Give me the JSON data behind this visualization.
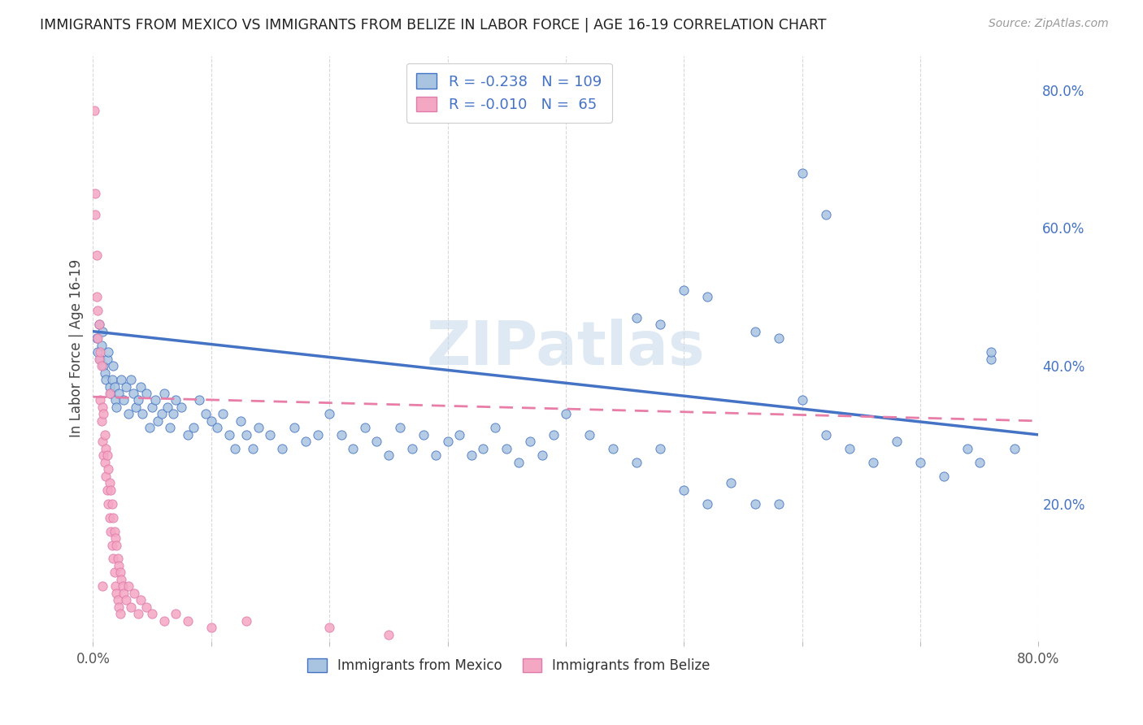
{
  "title": "IMMIGRANTS FROM MEXICO VS IMMIGRANTS FROM BELIZE IN LABOR FORCE | AGE 16-19 CORRELATION CHART",
  "source": "Source: ZipAtlas.com",
  "ylabel": "In Labor Force | Age 16-19",
  "xlim": [
    0.0,
    0.8
  ],
  "ylim": [
    0.0,
    0.85
  ],
  "y_ticks_right": [
    0.2,
    0.4,
    0.6,
    0.8
  ],
  "y_tick_labels_right": [
    "20.0%",
    "40.0%",
    "60.0%",
    "80.0%"
  ],
  "legend_R_mexico": "-0.238",
  "legend_N_mexico": "109",
  "legend_R_belize": "-0.010",
  "legend_N_belize": "65",
  "color_mexico": "#a8c4e0",
  "color_mexico_line": "#4472c4",
  "color_belize": "#f4a7c3",
  "color_belize_line": "#f48fb1",
  "watermark": "ZIPatlas",
  "mexico_x": [
    0.003,
    0.004,
    0.005,
    0.006,
    0.007,
    0.008,
    0.009,
    0.01,
    0.011,
    0.012,
    0.013,
    0.014,
    0.015,
    0.016,
    0.017,
    0.018,
    0.019,
    0.02,
    0.022,
    0.024,
    0.026,
    0.028,
    0.03,
    0.032,
    0.034,
    0.036,
    0.038,
    0.04,
    0.042,
    0.045,
    0.048,
    0.05,
    0.053,
    0.055,
    0.058,
    0.06,
    0.063,
    0.065,
    0.068,
    0.07,
    0.075,
    0.08,
    0.085,
    0.09,
    0.095,
    0.1,
    0.105,
    0.11,
    0.115,
    0.12,
    0.125,
    0.13,
    0.135,
    0.14,
    0.15,
    0.16,
    0.17,
    0.18,
    0.19,
    0.2,
    0.21,
    0.22,
    0.23,
    0.24,
    0.25,
    0.26,
    0.27,
    0.28,
    0.29,
    0.3,
    0.31,
    0.32,
    0.33,
    0.34,
    0.35,
    0.36,
    0.37,
    0.38,
    0.39,
    0.4,
    0.42,
    0.44,
    0.46,
    0.48,
    0.5,
    0.52,
    0.54,
    0.56,
    0.58,
    0.6,
    0.62,
    0.64,
    0.66,
    0.68,
    0.7,
    0.72,
    0.74,
    0.75,
    0.76,
    0.78,
    0.46,
    0.48,
    0.5,
    0.52,
    0.6,
    0.62,
    0.56,
    0.58,
    0.76
  ],
  "mexico_y": [
    0.44,
    0.42,
    0.46,
    0.41,
    0.43,
    0.45,
    0.4,
    0.39,
    0.38,
    0.41,
    0.42,
    0.37,
    0.36,
    0.38,
    0.4,
    0.37,
    0.35,
    0.34,
    0.36,
    0.38,
    0.35,
    0.37,
    0.33,
    0.38,
    0.36,
    0.34,
    0.35,
    0.37,
    0.33,
    0.36,
    0.31,
    0.34,
    0.35,
    0.32,
    0.33,
    0.36,
    0.34,
    0.31,
    0.33,
    0.35,
    0.34,
    0.3,
    0.31,
    0.35,
    0.33,
    0.32,
    0.31,
    0.33,
    0.3,
    0.28,
    0.32,
    0.3,
    0.28,
    0.31,
    0.3,
    0.28,
    0.31,
    0.29,
    0.3,
    0.33,
    0.3,
    0.28,
    0.31,
    0.29,
    0.27,
    0.31,
    0.28,
    0.3,
    0.27,
    0.29,
    0.3,
    0.27,
    0.28,
    0.31,
    0.28,
    0.26,
    0.29,
    0.27,
    0.3,
    0.33,
    0.3,
    0.28,
    0.26,
    0.28,
    0.22,
    0.2,
    0.23,
    0.2,
    0.2,
    0.35,
    0.3,
    0.28,
    0.26,
    0.29,
    0.26,
    0.24,
    0.28,
    0.26,
    0.41,
    0.28,
    0.47,
    0.46,
    0.51,
    0.5,
    0.68,
    0.62,
    0.45,
    0.44,
    0.42
  ],
  "belize_x": [
    0.001,
    0.002,
    0.002,
    0.003,
    0.003,
    0.004,
    0.004,
    0.005,
    0.005,
    0.006,
    0.006,
    0.007,
    0.007,
    0.008,
    0.008,
    0.009,
    0.009,
    0.01,
    0.01,
    0.011,
    0.011,
    0.012,
    0.012,
    0.013,
    0.013,
    0.014,
    0.014,
    0.015,
    0.015,
    0.016,
    0.016,
    0.017,
    0.017,
    0.018,
    0.018,
    0.019,
    0.019,
    0.02,
    0.02,
    0.021,
    0.021,
    0.022,
    0.022,
    0.023,
    0.023,
    0.024,
    0.025,
    0.026,
    0.028,
    0.03,
    0.032,
    0.035,
    0.038,
    0.04,
    0.045,
    0.05,
    0.06,
    0.07,
    0.08,
    0.1,
    0.13,
    0.2,
    0.25,
    0.014,
    0.008
  ],
  "belize_y": [
    0.77,
    0.65,
    0.62,
    0.56,
    0.5,
    0.48,
    0.44,
    0.46,
    0.41,
    0.42,
    0.35,
    0.4,
    0.32,
    0.34,
    0.29,
    0.33,
    0.27,
    0.3,
    0.26,
    0.28,
    0.24,
    0.27,
    0.22,
    0.25,
    0.2,
    0.23,
    0.18,
    0.22,
    0.16,
    0.2,
    0.14,
    0.18,
    0.12,
    0.16,
    0.1,
    0.15,
    0.08,
    0.14,
    0.07,
    0.12,
    0.06,
    0.11,
    0.05,
    0.1,
    0.04,
    0.09,
    0.08,
    0.07,
    0.06,
    0.08,
    0.05,
    0.07,
    0.04,
    0.06,
    0.05,
    0.04,
    0.03,
    0.04,
    0.03,
    0.02,
    0.03,
    0.02,
    0.01,
    0.36,
    0.08
  ],
  "background_color": "#ffffff",
  "grid_color": "#d8d8d8"
}
